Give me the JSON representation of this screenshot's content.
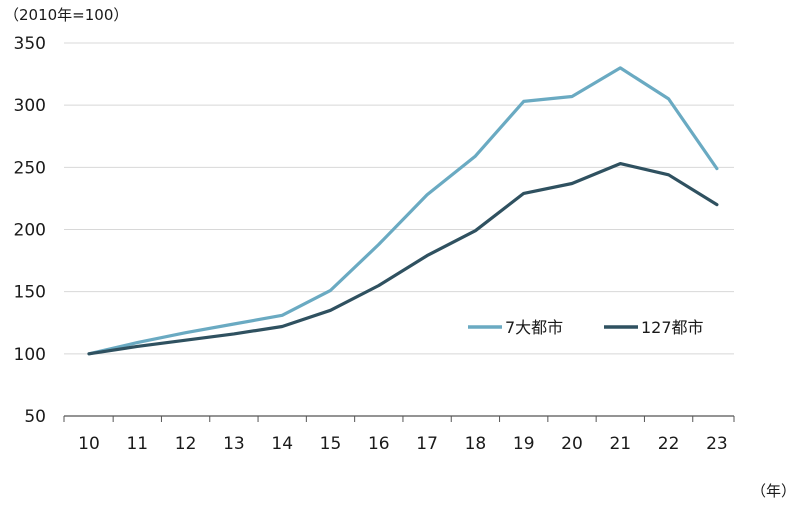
{
  "chart_data": {
    "type": "line",
    "unit_label": "（2010年=100）",
    "x_unit_label": "（年）",
    "categories": [
      "10",
      "11",
      "12",
      "13",
      "14",
      "15",
      "16",
      "17",
      "18",
      "19",
      "20",
      "21",
      "22",
      "23"
    ],
    "ylim": [
      50,
      350
    ],
    "yticks": [
      50,
      100,
      150,
      200,
      250,
      300,
      350
    ],
    "ytick_labels": [
      "50",
      "100",
      "150",
      "200",
      "250",
      "300",
      "350"
    ],
    "grid": true,
    "legend_position": "right-middle",
    "series": [
      {
        "name": "7大都市",
        "color": "#6aaac2",
        "values": [
          100,
          109,
          117,
          124,
          131,
          151,
          188,
          228,
          259,
          303,
          307,
          330,
          305,
          249
        ]
      },
      {
        "name": "127都市",
        "color": "#2f5160",
        "values": [
          100,
          106,
          111,
          116,
          122,
          135,
          155,
          179,
          199,
          229,
          237,
          253,
          244,
          220
        ]
      }
    ]
  },
  "colors": {
    "grid": "#d8d8d8",
    "axis": "#555555",
    "text": "#1a1a1a"
  }
}
